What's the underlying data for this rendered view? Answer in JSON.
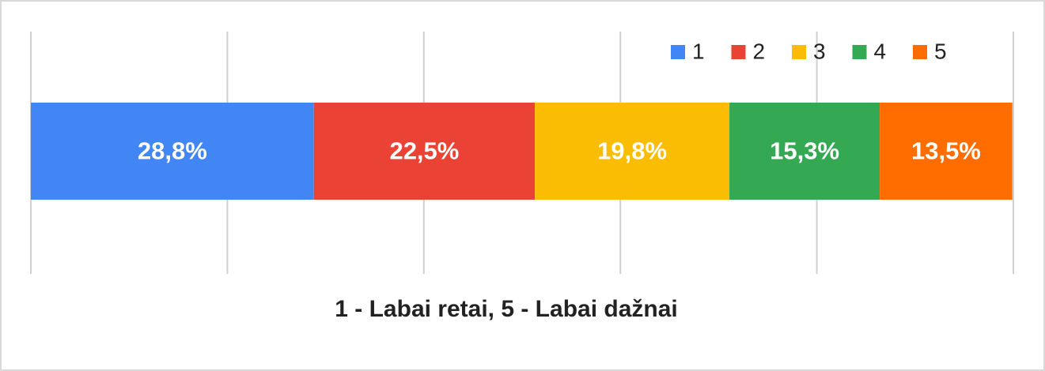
{
  "chart_data": {
    "type": "stacked_bar_horizontal",
    "x_label": "1 - Labai retai, 5 - Labai dažnai",
    "xlim": [
      0,
      100
    ],
    "xticks": [
      0,
      20,
      40,
      60,
      80,
      100
    ],
    "grid": true,
    "legend": "top-right",
    "series": [
      {
        "name": "1",
        "color": "#4285f4",
        "values": [
          28.8
        ],
        "value_labels": [
          "28,8%"
        ]
      },
      {
        "name": "2",
        "color": "#ea4335",
        "values": [
          22.5
        ],
        "value_labels": [
          "22,5%"
        ]
      },
      {
        "name": "3",
        "color": "#fbbc04",
        "values": [
          19.8
        ],
        "value_labels": [
          "19,8%"
        ]
      },
      {
        "name": "4",
        "color": "#34a853",
        "values": [
          15.3
        ],
        "value_labels": [
          "15,3%"
        ]
      },
      {
        "name": "5",
        "color": "#ff6d01",
        "values": [
          13.5
        ],
        "value_labels": [
          "13,5%"
        ]
      }
    ]
  }
}
